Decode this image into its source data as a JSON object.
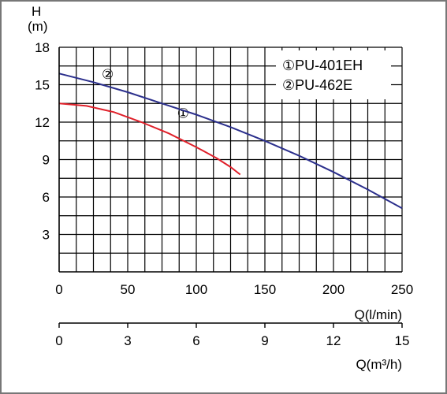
{
  "chart_data": {
    "type": "line",
    "title": "",
    "ylabel": "H",
    "yunit": "(m)",
    "ylim": [
      0,
      18
    ],
    "yticks": [
      3,
      6,
      9,
      12,
      15,
      18
    ],
    "grid": true,
    "axis_primary": {
      "label": "Q(l/min)",
      "xlim": [
        0,
        250
      ],
      "ticks": [
        0,
        50,
        100,
        150,
        200,
        250
      ]
    },
    "axis_secondary": {
      "label": "Q(m³/h)",
      "xlim": [
        0,
        15
      ],
      "ticks": [
        0,
        3,
        6,
        9,
        12,
        15
      ]
    },
    "legend_position": "top-right",
    "series": [
      {
        "name": "①PU-401EH",
        "marker": "①",
        "color": "#e0202a",
        "x": [
          0,
          20,
          40,
          60,
          80,
          100,
          115,
          125,
          132
        ],
        "y": [
          13.5,
          13.3,
          12.8,
          12.0,
          11.1,
          10.0,
          9.1,
          8.4,
          7.8
        ]
      },
      {
        "name": "②PU-462E",
        "marker": "②",
        "color": "#2b2f8c",
        "x": [
          0,
          25,
          50,
          75,
          100,
          125,
          150,
          175,
          200,
          225,
          250
        ],
        "y": [
          15.9,
          15.2,
          14.4,
          13.5,
          12.6,
          11.6,
          10.5,
          9.3,
          8.0,
          6.6,
          5.1
        ]
      }
    ]
  }
}
